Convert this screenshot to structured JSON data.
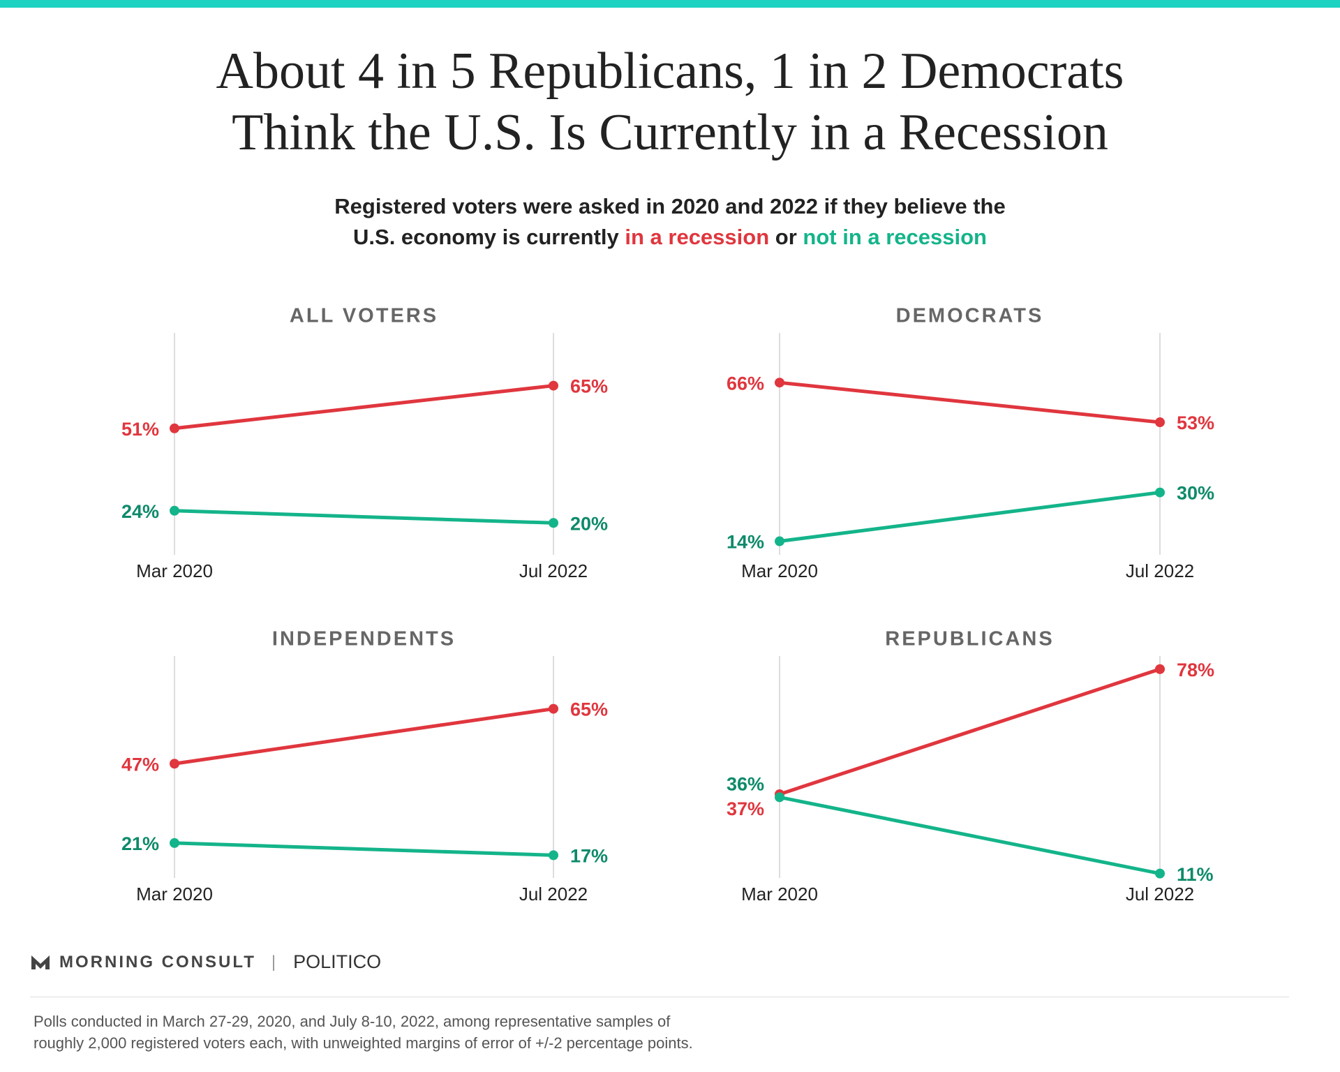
{
  "header": {
    "title": [
      "About 4 in 5 Republicans, 1 in 2 Democrats",
      "Think the U.S. Is Currently in a Recession"
    ],
    "subtitle": [
      "Registered voters were asked in 2020 and 2022 if they believe the",
      "U.S. economy is currently",
      "in a recession",
      "or",
      "not in a recession"
    ]
  },
  "chart_data": [
    {
      "type": "line",
      "title": "ALL VOTERS",
      "categories": [
        "Mar 2020",
        "Jul 2022"
      ],
      "ylim": [
        10,
        80
      ],
      "series": [
        {
          "color": "#e0363e",
          "label_color": "#e0363e",
          "values": [
            51,
            65
          ],
          "value_labels": [
            "51%",
            "65%"
          ]
        },
        {
          "color": "#14b48a",
          "label_color": "#0e8a6a",
          "values": [
            24,
            20
          ],
          "value_labels": [
            "24%",
            "20%"
          ]
        }
      ]
    },
    {
      "type": "line",
      "title": "DEMOCRATS",
      "categories": [
        "Mar 2020",
        "Jul 2022"
      ],
      "ylim": [
        10,
        80
      ],
      "series": [
        {
          "color": "#e0363e",
          "label_color": "#e0363e",
          "values": [
            66,
            53
          ],
          "value_labels": [
            "66%",
            "53%"
          ]
        },
        {
          "color": "#14b48a",
          "label_color": "#0e8a6a",
          "values": [
            14,
            30
          ],
          "value_labels": [
            "14%",
            "30%"
          ]
        }
      ]
    },
    {
      "type": "line",
      "title": "INDEPENDENTS",
      "categories": [
        "Mar 2020",
        "Jul 2022"
      ],
      "ylim": [
        10,
        80
      ],
      "series": [
        {
          "color": "#e0363e",
          "label_color": "#e0363e",
          "values": [
            47,
            65
          ],
          "value_labels": [
            "47%",
            "65%"
          ]
        },
        {
          "color": "#14b48a",
          "label_color": "#0e8a6a",
          "values": [
            21,
            17
          ],
          "value_labels": [
            "21%",
            "17%"
          ]
        }
      ]
    },
    {
      "type": "line",
      "title": "REPUBLICANS",
      "categories": [
        "Mar 2020",
        "Jul 2022"
      ],
      "ylim": [
        10,
        80
      ],
      "series": [
        {
          "color": "#e0363e",
          "label_color": "#e0363e",
          "values": [
            37,
            78
          ],
          "value_labels": [
            "37%",
            "78%"
          ]
        },
        {
          "color": "#14b48a",
          "label_color": "#0e8a6a",
          "values": [
            36,
            11
          ],
          "value_labels": [
            "36%",
            "11%"
          ]
        }
      ]
    }
  ],
  "footer": {
    "brand": "MORNING CONSULT",
    "partner": "POLITICO",
    "note": [
      "Polls conducted in March 27-29, 2020, and July 8-10, 2022, among representative samples of",
      "roughly 2,000 registered voters each, with unweighted margins of error of +/-2 percentage points."
    ]
  }
}
